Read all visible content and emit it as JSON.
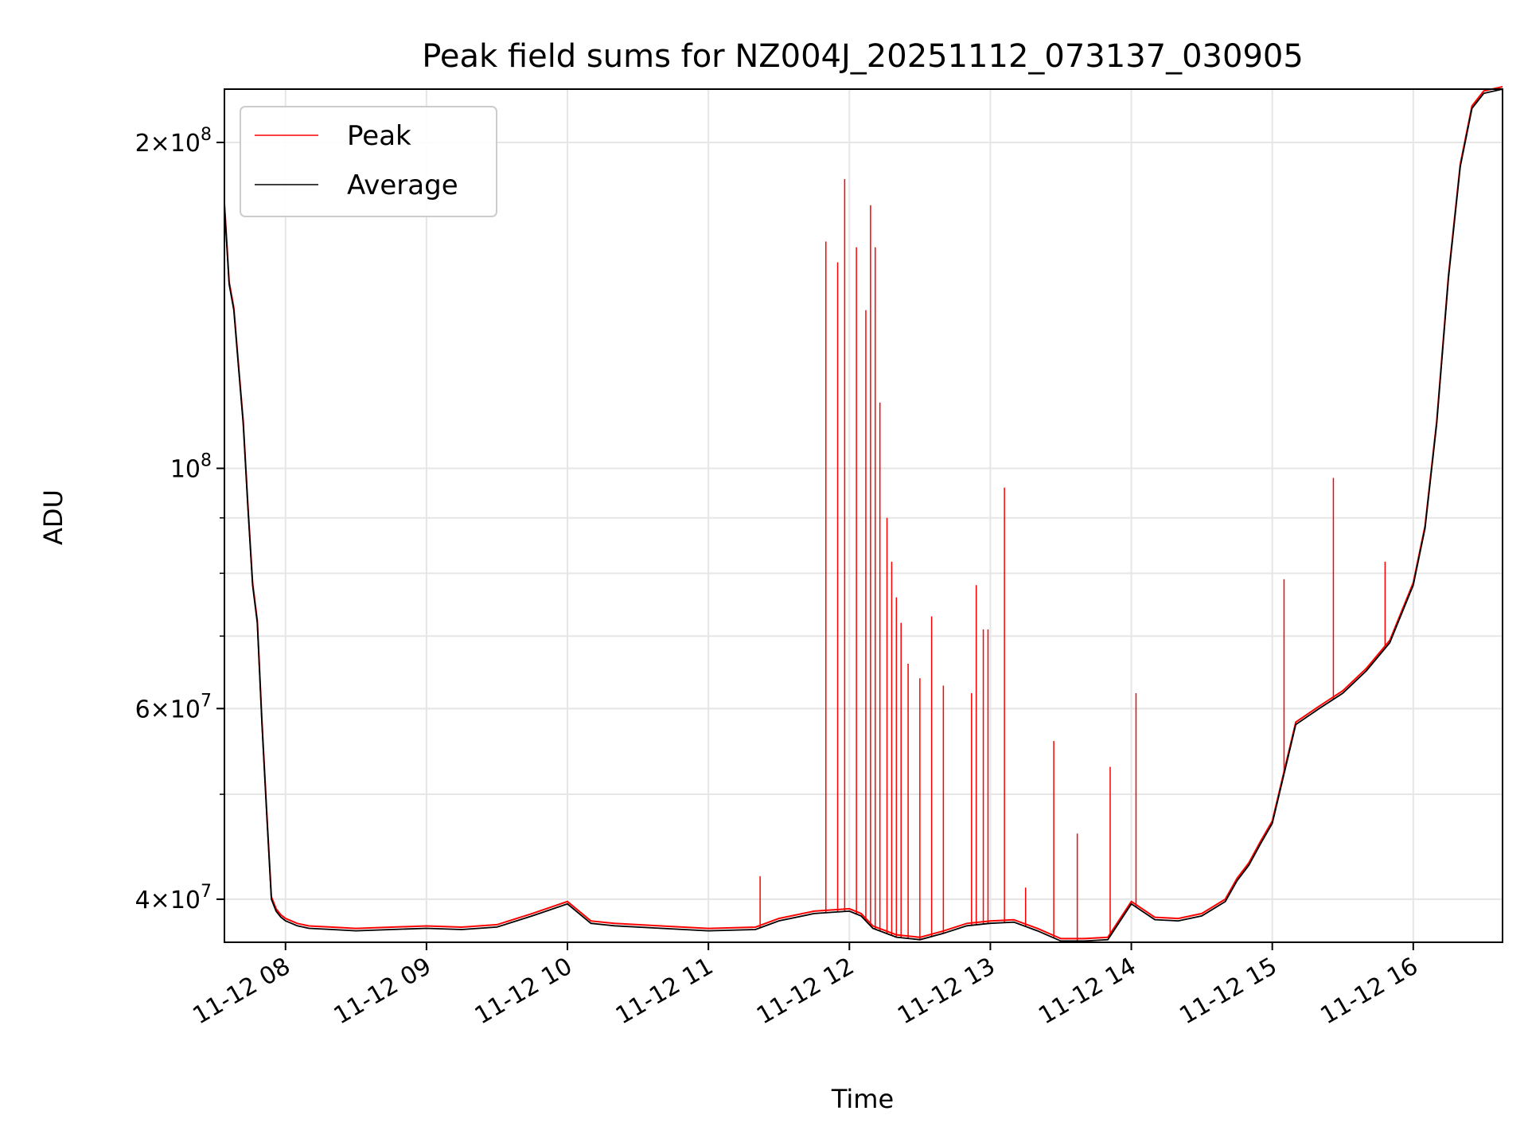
{
  "chart_data": {
    "type": "line",
    "title": "Peak field sums for NZ004J_20251112_073137_030905",
    "xlabel": "Time",
    "ylabel": "ADU",
    "yscale": "log",
    "grid": true,
    "legend_placement": "top-left",
    "xlim": [
      "2025-11-12 07:34",
      "2025-11-12 16:38"
    ],
    "ylim": [
      36500000,
      224000000
    ],
    "x_ticks": [
      {
        "x": "2025-11-12 08:00",
        "label": "11-12 08"
      },
      {
        "x": "2025-11-12 09:00",
        "label": "11-12 09"
      },
      {
        "x": "2025-11-12 10:00",
        "label": "11-12 10"
      },
      {
        "x": "2025-11-12 11:00",
        "label": "11-12 11"
      },
      {
        "x": "2025-11-12 12:00",
        "label": "11-12 12"
      },
      {
        "x": "2025-11-12 13:00",
        "label": "11-12 13"
      },
      {
        "x": "2025-11-12 14:00",
        "label": "11-12 14"
      },
      {
        "x": "2025-11-12 15:00",
        "label": "11-12 15"
      },
      {
        "x": "2025-11-12 16:00",
        "label": "11-12 16"
      }
    ],
    "y_ticks": [
      {
        "value": 40000000,
        "mantissa": "4",
        "exponent": "7"
      },
      {
        "value": 60000000,
        "mantissa": "6",
        "exponent": "7"
      },
      {
        "value": 100000000,
        "mantissa": "",
        "exponent": "8"
      },
      {
        "value": 200000000,
        "mantissa": "2",
        "exponent": "8"
      }
    ],
    "series": [
      {
        "name": "Average",
        "color": "#000000",
        "x": [
          "2025-11-12 07:34",
          "2025-11-12 07:36",
          "2025-11-12 07:38",
          "2025-11-12 07:40",
          "2025-11-12 07:42",
          "2025-11-12 07:44",
          "2025-11-12 07:46",
          "2025-11-12 07:48",
          "2025-11-12 07:50",
          "2025-11-12 07:52",
          "2025-11-12 07:54",
          "2025-11-12 07:56",
          "2025-11-12 07:58",
          "2025-11-12 08:00",
          "2025-11-12 08:05",
          "2025-11-12 08:10",
          "2025-11-12 08:20",
          "2025-11-12 08:30",
          "2025-11-12 08:45",
          "2025-11-12 09:00",
          "2025-11-12 09:15",
          "2025-11-12 09:30",
          "2025-11-12 09:45",
          "2025-11-12 10:00",
          "2025-11-12 10:10",
          "2025-11-12 10:20",
          "2025-11-12 10:40",
          "2025-11-12 11:00",
          "2025-11-12 11:20",
          "2025-11-12 11:30",
          "2025-11-12 11:45",
          "2025-11-12 12:00",
          "2025-11-12 12:05",
          "2025-11-12 12:10",
          "2025-11-12 12:20",
          "2025-11-12 12:30",
          "2025-11-12 12:40",
          "2025-11-12 12:50",
          "2025-11-12 13:00",
          "2025-11-12 13:10",
          "2025-11-12 13:20",
          "2025-11-12 13:30",
          "2025-11-12 13:40",
          "2025-11-12 13:50",
          "2025-11-12 14:00",
          "2025-11-12 14:10",
          "2025-11-12 14:20",
          "2025-11-12 14:30",
          "2025-11-12 14:40",
          "2025-11-12 14:45",
          "2025-11-12 14:50",
          "2025-11-12 14:55",
          "2025-11-12 15:00",
          "2025-11-12 15:10",
          "2025-11-12 15:20",
          "2025-11-12 15:30",
          "2025-11-12 15:40",
          "2025-11-12 15:50",
          "2025-11-12 16:00",
          "2025-11-12 16:05",
          "2025-11-12 16:10",
          "2025-11-12 16:15",
          "2025-11-12 16:20",
          "2025-11-12 16:25",
          "2025-11-12 16:30",
          "2025-11-12 16:38"
        ],
        "values": [
          175000000,
          148000000,
          140000000,
          124000000,
          110000000,
          92000000,
          78000000,
          72000000,
          58000000,
          48000000,
          40000000,
          39000000,
          38500000,
          38200000,
          37800000,
          37600000,
          37500000,
          37400000,
          37500000,
          37600000,
          37500000,
          37700000,
          38600000,
          39600000,
          38000000,
          37800000,
          37600000,
          37400000,
          37500000,
          38200000,
          38800000,
          39000000,
          38600000,
          37600000,
          36900000,
          36700000,
          37200000,
          37800000,
          38000000,
          38100000,
          37400000,
          36600000,
          36600000,
          36700000,
          39600000,
          38300000,
          38200000,
          38600000,
          39800000,
          41600000,
          43000000,
          45000000,
          47000000,
          58000000,
          60000000,
          62000000,
          65000000,
          69000000,
          78000000,
          88000000,
          110000000,
          150000000,
          190000000,
          215000000,
          222000000,
          224000000
        ]
      },
      {
        "name": "Peak",
        "color": "#ff0000",
        "spikes": [
          {
            "x": "2025-11-12 11:22",
            "value": 42000000
          },
          {
            "x": "2025-11-12 11:50",
            "value": 162000000
          },
          {
            "x": "2025-11-12 11:55",
            "value": 155000000
          },
          {
            "x": "2025-11-12 11:58",
            "value": 185000000
          },
          {
            "x": "2025-11-12 12:03",
            "value": 160000000
          },
          {
            "x": "2025-11-12 12:07",
            "value": 140000000
          },
          {
            "x": "2025-11-12 12:09",
            "value": 175000000
          },
          {
            "x": "2025-11-12 12:11",
            "value": 160000000
          },
          {
            "x": "2025-11-12 12:13",
            "value": 115000000
          },
          {
            "x": "2025-11-12 12:16",
            "value": 90000000
          },
          {
            "x": "2025-11-12 12:18",
            "value": 82000000
          },
          {
            "x": "2025-11-12 12:20",
            "value": 76000000
          },
          {
            "x": "2025-11-12 12:22",
            "value": 72000000
          },
          {
            "x": "2025-11-12 12:25",
            "value": 66000000
          },
          {
            "x": "2025-11-12 12:30",
            "value": 64000000
          },
          {
            "x": "2025-11-12 12:35",
            "value": 73000000
          },
          {
            "x": "2025-11-12 12:40",
            "value": 63000000
          },
          {
            "x": "2025-11-12 12:52",
            "value": 62000000
          },
          {
            "x": "2025-11-12 12:54",
            "value": 78000000
          },
          {
            "x": "2025-11-12 12:57",
            "value": 71000000
          },
          {
            "x": "2025-11-12 12:59",
            "value": 71000000
          },
          {
            "x": "2025-11-12 13:06",
            "value": 96000000
          },
          {
            "x": "2025-11-12 13:15",
            "value": 41000000
          },
          {
            "x": "2025-11-12 13:27",
            "value": 56000000
          },
          {
            "x": "2025-11-12 13:37",
            "value": 46000000
          },
          {
            "x": "2025-11-12 13:51",
            "value": 53000000
          },
          {
            "x": "2025-11-12 14:02",
            "value": 62000000
          },
          {
            "x": "2025-11-12 15:05",
            "value": 79000000
          },
          {
            "x": "2025-11-12 15:26",
            "value": 98000000
          },
          {
            "x": "2025-11-12 15:48",
            "value": 82000000
          }
        ]
      }
    ]
  }
}
